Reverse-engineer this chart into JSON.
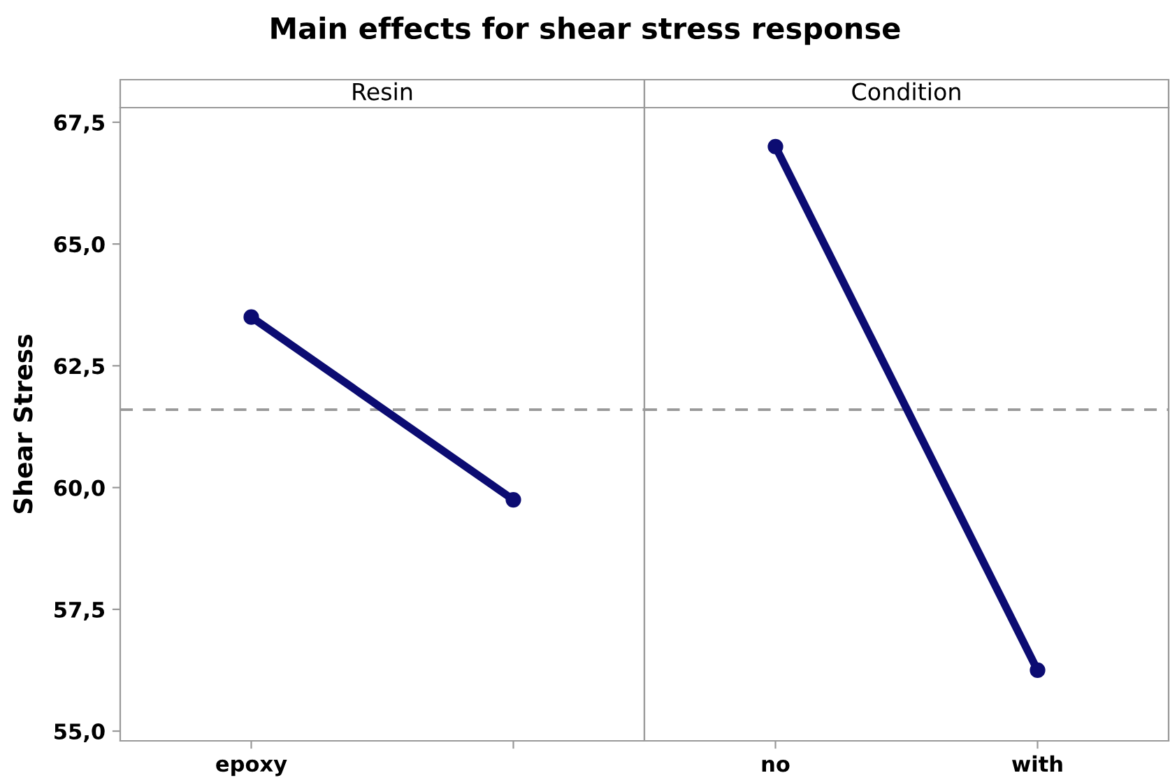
{
  "chart_data": [
    {
      "type": "line",
      "title": "Main effects for shear stress response",
      "subtitle": "Resin",
      "ylabel": "Shear Stress",
      "categories": [
        "epoxy",
        null
      ],
      "series": [
        {
          "color": "#0c0c72",
          "values": [
            63.5,
            59.75
          ]
        }
      ],
      "ylim": [
        54.8,
        67.8
      ],
      "yticks": [
        {
          "value": 55,
          "label": "55,0"
        },
        {
          "value": 57.5,
          "label": "57,5"
        },
        {
          "value": 60,
          "label": "60,0"
        },
        {
          "value": 62.5,
          "label": "62,5"
        },
        {
          "value": 65,
          "label": "65,0"
        },
        {
          "value": 67.5,
          "label": "67,5"
        }
      ],
      "ref_lines": [
        {
          "axis": "y",
          "value": 61.6,
          "color": "#999999",
          "line_style": "dashed"
        }
      ],
      "marker": "circle",
      "grid": false,
      "legend": false
    },
    {
      "type": "line",
      "subtitle": "Condition",
      "categories": [
        "no",
        "with"
      ],
      "series": [
        {
          "color": "#0c0c72",
          "values": [
            67.0,
            56.25
          ]
        }
      ],
      "ylim": [
        54.8,
        67.8
      ],
      "ref_lines": [
        {
          "axis": "y",
          "value": 61.6,
          "color": "#999999",
          "line_style": "dashed"
        }
      ],
      "marker": "circle",
      "grid": false,
      "legend": false,
      "tick_labels": "x"
    }
  ]
}
